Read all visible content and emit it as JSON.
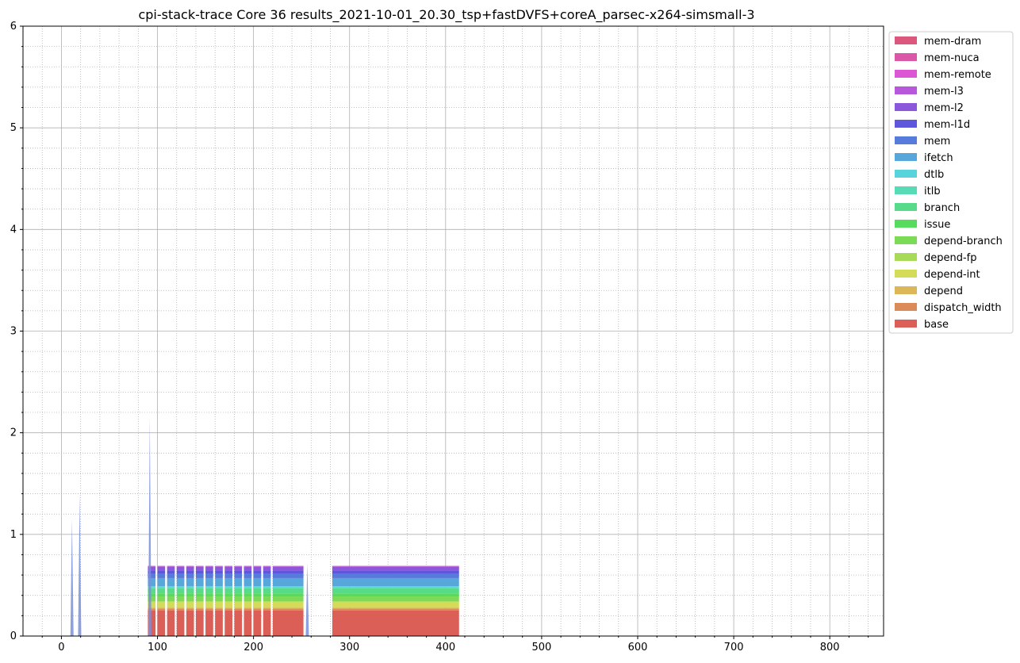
{
  "chart_data": {
    "type": "area",
    "title": "cpi-stack-trace Core 36 results_2021-10-01_20.30_tsp+fastDVFS+coreA_parsec-x264-simsmall-3",
    "xlabel": "",
    "ylabel": "",
    "xlim": [
      -40,
      856
    ],
    "ylim": [
      0,
      6
    ],
    "x_ticks": [
      0,
      100,
      200,
      300,
      400,
      500,
      600,
      700,
      800
    ],
    "y_ticks": [
      0,
      1,
      2,
      3,
      4,
      5,
      6
    ],
    "grid": true,
    "minor_grid": true,
    "legend_position": "outside-right",
    "segments": [
      [
        90,
        98
      ],
      [
        100,
        108
      ],
      [
        110,
        118
      ],
      [
        120,
        128
      ],
      [
        130,
        138
      ],
      [
        140,
        148
      ],
      [
        150,
        158
      ],
      [
        160,
        168
      ],
      [
        170,
        178
      ],
      [
        180,
        188
      ],
      [
        190,
        198
      ],
      [
        200,
        208
      ],
      [
        210,
        218
      ],
      [
        220,
        252
      ],
      [
        282,
        414
      ]
    ],
    "series": [
      {
        "name": "base",
        "color": "#db5f57",
        "value": 0.25
      },
      {
        "name": "dispatch_width",
        "color": "#db8b57",
        "value": 0.02
      },
      {
        "name": "depend",
        "color": "#dbb757",
        "value": 0.01
      },
      {
        "name": "depend-int",
        "color": "#d3db57",
        "value": 0.06
      },
      {
        "name": "depend-fp",
        "color": "#a7db57",
        "value": 0.0
      },
      {
        "name": "depend-branch",
        "color": "#7bdb57",
        "value": 0.05
      },
      {
        "name": "issue",
        "color": "#57db5f",
        "value": 0.03
      },
      {
        "name": "branch",
        "color": "#57db8b",
        "value": 0.05
      },
      {
        "name": "itlb",
        "color": "#57dbb7",
        "value": 0.01
      },
      {
        "name": "dtlb",
        "color": "#57d3db",
        "value": 0.01
      },
      {
        "name": "ifetch",
        "color": "#57a7db",
        "value": 0.08
      },
      {
        "name": "mem",
        "color": "#577bdb",
        "value": 0.04
      },
      {
        "name": "mem-l1d",
        "color": "#5f57db",
        "value": 0.03
      },
      {
        "name": "mem-l2",
        "color": "#8b57db",
        "value": 0.04
      },
      {
        "name": "mem-l3",
        "color": "#b757db",
        "value": 0.01
      },
      {
        "name": "mem-remote",
        "color": "#db57d3",
        "value": 0.0
      },
      {
        "name": "mem-nuca",
        "color": "#db57a7",
        "value": 0.0
      },
      {
        "name": "mem-dram",
        "color": "#db577b",
        "value": 0.0
      }
    ],
    "spikes": [
      {
        "x": 11,
        "value": 1.15
      },
      {
        "x": 19,
        "value": 1.4
      },
      {
        "x": 92,
        "value": 2.15
      },
      {
        "x": 256,
        "value": 0.72
      }
    ]
  }
}
